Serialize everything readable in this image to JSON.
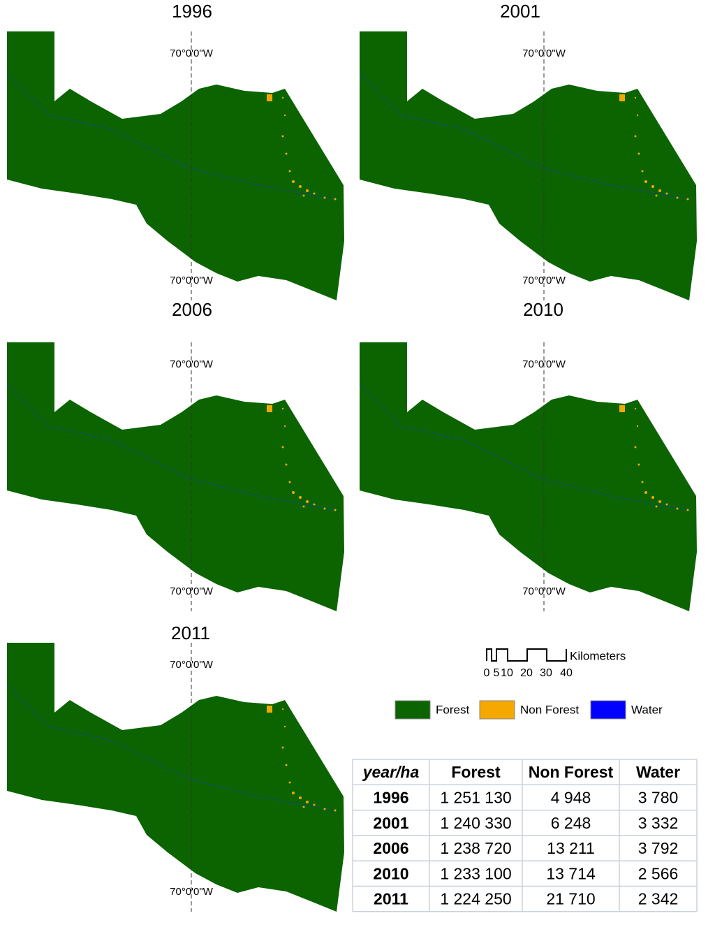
{
  "maps": [
    {
      "title": "1996",
      "meridian_top": "70°0'0\"W",
      "meridian_bottom": "70°0'0\"W"
    },
    {
      "title": "2001",
      "meridian_top": "70°0'0\"W",
      "meridian_bottom": "70°0'0\"W"
    },
    {
      "title": "2006",
      "meridian_top": "70°0'0\"W",
      "meridian_bottom": "70°0'0\"W"
    },
    {
      "title": "2010",
      "meridian_top": "70°0'0\"W",
      "meridian_bottom": "70°0'0\"W"
    },
    {
      "title": "2011",
      "meridian_top": "70°0'0\"W",
      "meridian_bottom": "70°0'0\"W"
    }
  ],
  "scale_bar": {
    "unit": "Kilometers",
    "ticks": [
      0,
      5,
      10,
      20,
      30,
      40
    ]
  },
  "legend": [
    "Forest",
    "Non Forest",
    "Water"
  ],
  "table": {
    "header": [
      "year/ha",
      "Forest",
      "Non Forest",
      "Water"
    ],
    "rows": [
      [
        "1996",
        "1 251 130",
        "4 948",
        "3 780"
      ],
      [
        "2001",
        "1 240 330",
        "6 248",
        "3 332"
      ],
      [
        "2006",
        "1 238 720",
        "13 211",
        "3 792"
      ],
      [
        "2010",
        "1 233 100",
        "13 714",
        "2 566"
      ],
      [
        "2011",
        "1 224 250",
        "21 710",
        "2 342"
      ]
    ]
  }
}
